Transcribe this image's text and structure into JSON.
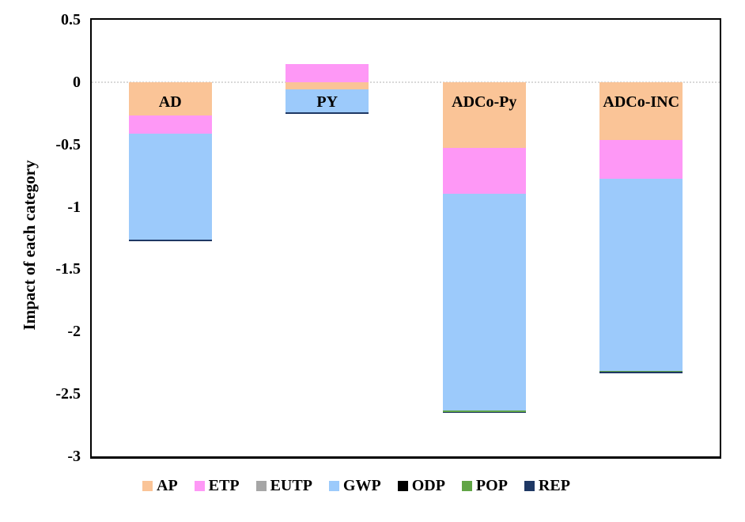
{
  "chart_data": {
    "type": "bar",
    "stacked": true,
    "title": "",
    "xlabel": "",
    "ylabel": "Impact of each category",
    "categories": [
      "AD",
      "PY",
      "ADCo-Py",
      "ADCo-INC"
    ],
    "series": [
      {
        "name": "AP",
        "color": "#FAC497",
        "values": [
          -0.27,
          -0.055,
          -0.525,
          -0.461
        ]
      },
      {
        "name": "ETP",
        "color": "#FE98F6",
        "values": [
          -0.144,
          0.148,
          -0.373,
          -0.314
        ]
      },
      {
        "name": "EUTP",
        "color": "#A6A6A6",
        "values": [
          0,
          0,
          0,
          0
        ]
      },
      {
        "name": "GWP",
        "color": "#9CCAFB",
        "values": [
          -0.849,
          -0.189,
          -1.734,
          -1.541
        ]
      },
      {
        "name": "ODP",
        "color": "#000000",
        "values": [
          0,
          0,
          0,
          0
        ]
      },
      {
        "name": "POP",
        "color": "#61A546",
        "values": [
          0,
          0,
          -0.01,
          -0.008
        ]
      },
      {
        "name": "REP",
        "color": "#1F3864",
        "values": [
          -0.013,
          -0.013,
          -0.01,
          -0.012
        ]
      }
    ],
    "ylim": [
      -3,
      0.5
    ],
    "ytick_labels": [
      "0.5",
      "0",
      "-0.5",
      "-1",
      "-1.5",
      "-2",
      "-2.5",
      "-3"
    ],
    "grid": "zero-line-only",
    "legend_position": "bottom",
    "axis_color": "#000000",
    "zero_gridline_color": "#D9D9D9",
    "background_color": "#FFFFFF"
  }
}
